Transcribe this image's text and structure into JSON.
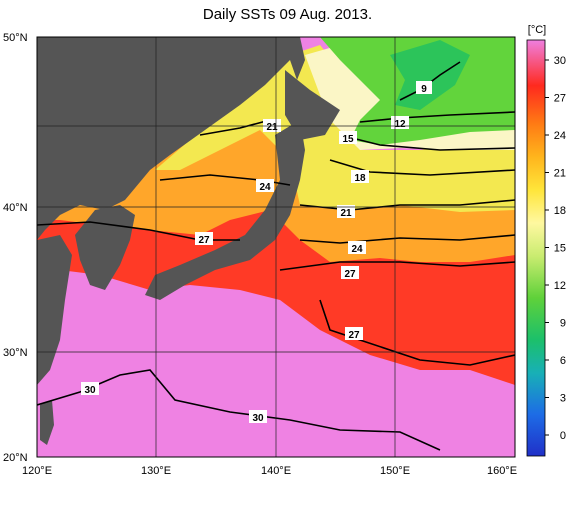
{
  "title": "Daily SSTs 09 Aug. 2013.",
  "axes": {
    "lat_ticks": [
      "50°N",
      "40°N",
      "30°N",
      "20°N"
    ],
    "lon_ticks": [
      "120°E",
      "130°E",
      "140°E",
      "150°E",
      "160°E"
    ]
  },
  "colorbar": {
    "unit": "[°C]",
    "ticks": [
      "30",
      "27",
      "24",
      "21",
      "18",
      "15",
      "12",
      "9",
      "6",
      "3",
      "0"
    ],
    "colors": [
      "#ef7fe0",
      "#ff2a1e",
      "#ff7a14",
      "#ffb41c",
      "#ffe53a",
      "#fff8a0",
      "#c9ec70",
      "#5fd13a",
      "#1cc06a",
      "#18b0b6",
      "#1d6ce6",
      "#2030c8"
    ]
  },
  "contour_labels": [
    {
      "text": "9"
    },
    {
      "text": "12"
    },
    {
      "text": "15"
    },
    {
      "text": "18"
    },
    {
      "text": "21"
    },
    {
      "text": "21"
    },
    {
      "text": "24"
    },
    {
      "text": "24"
    },
    {
      "text": "27"
    },
    {
      "text": "27"
    },
    {
      "text": "27"
    },
    {
      "text": "30"
    },
    {
      "text": "30"
    }
  ],
  "colors": {
    "land": "#555555",
    "warm_pink": "#ef82e3",
    "red": "#ff2a1e",
    "orange": "#ffaa28",
    "yellow": "#f2e648",
    "pale": "#fbf7c8",
    "green": "#5ed23a"
  }
}
